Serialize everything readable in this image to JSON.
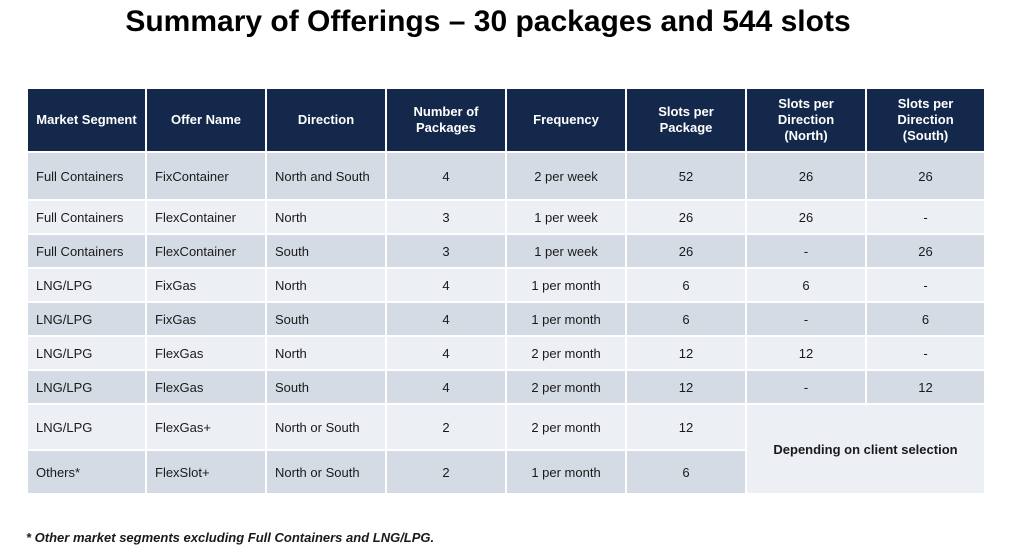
{
  "title": "Summary of Offerings – 30 packages and 544 slots",
  "table": {
    "headers": [
      "Market Segment",
      "Offer Name",
      "Direction",
      "Number of Packages",
      "Frequency",
      "Slots per Package",
      "Slots per Direction (North)",
      "Slots per Direction (South)"
    ],
    "rows": [
      [
        "Full Containers",
        "FixContainer",
        "North and South",
        "4",
        "2 per week",
        "52",
        "26",
        "26"
      ],
      [
        "Full Containers",
        "FlexContainer",
        "North",
        "3",
        "1 per week",
        "26",
        "26",
        "-"
      ],
      [
        "Full Containers",
        "FlexContainer",
        "South",
        "3",
        "1 per week",
        "26",
        "-",
        "26"
      ],
      [
        "LNG/LPG",
        "FixGas",
        "North",
        "4",
        "1 per month",
        "6",
        "6",
        "-"
      ],
      [
        "LNG/LPG",
        "FixGas",
        "South",
        "4",
        "1 per month",
        "6",
        "-",
        "6"
      ],
      [
        "LNG/LPG",
        "FlexGas",
        "North",
        "4",
        "2 per month",
        "12",
        "12",
        "-"
      ],
      [
        "LNG/LPG",
        "FlexGas",
        "South",
        "4",
        "2 per month",
        "12",
        "-",
        "12"
      ],
      [
        "LNG/LPG",
        "FlexGas+",
        "North or South",
        "2",
        "2 per month",
        "12"
      ],
      [
        "Others*",
        "FlexSlot+",
        "North or South",
        "2",
        "1 per month",
        "6"
      ]
    ],
    "merged_note": "Depending on client selection"
  },
  "footnote": "* Other market segments excluding Full Containers and LNG/LPG."
}
